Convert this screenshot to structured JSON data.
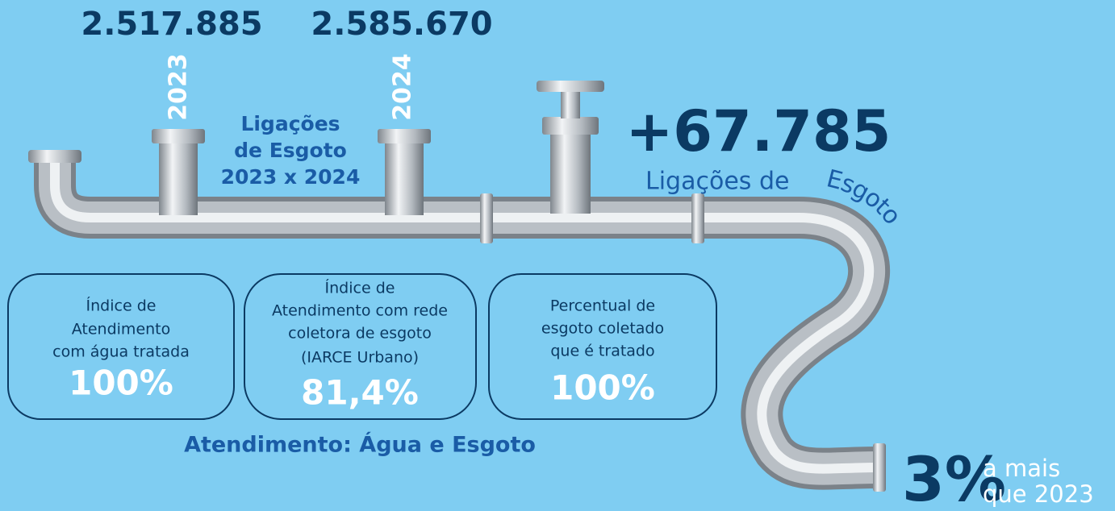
{
  "top": {
    "value_2023": "2.517.885",
    "year_2023": "2023",
    "value_2024": "2.585.670",
    "year_2024": "2024"
  },
  "connections_title": [
    "Ligações",
    "de Esgoto",
    "2023 x 2024"
  ],
  "growth": {
    "value": "+67.785",
    "label_start": "Ligações de",
    "label_curve": "Esgoto"
  },
  "boxes": [
    {
      "lines": [
        "Índice de",
        "Atendimento",
        "com água tratada"
      ],
      "value": "100%"
    },
    {
      "lines": [
        "Índice de",
        "Atendimento com rede",
        "coletora de esgoto",
        "(IARCE Urbano)"
      ],
      "value": "81,4%"
    },
    {
      "lines": [
        "Percentual de",
        "esgoto coletado",
        "que é tratado"
      ],
      "value": "100%"
    }
  ],
  "section_title": "Atendimento: Água e Esgoto",
  "increase": {
    "value": "3%",
    "line1": "a mais",
    "line2": "que 2023"
  }
}
